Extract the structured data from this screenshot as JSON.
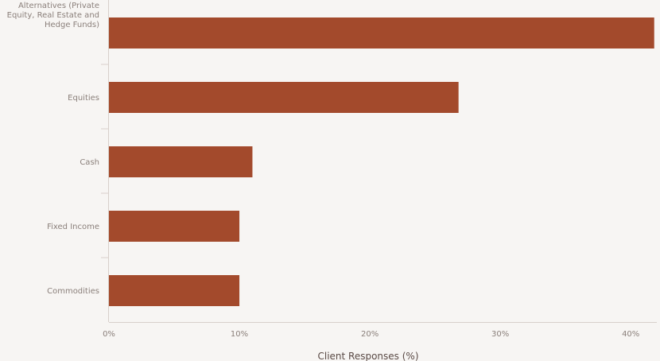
{
  "chart_data": {
    "type": "bar",
    "orientation": "horizontal",
    "categories": [
      [
        "Alternatives (Private",
        "Equity, Real Estate and",
        "Hedge Funds)"
      ],
      [
        "Equities"
      ],
      [
        "Cash"
      ],
      [
        "Fixed Income"
      ],
      [
        "Commodities"
      ]
    ],
    "values": [
      41.8,
      26.8,
      11,
      10,
      10
    ],
    "xlabel": "Client Responses (%)",
    "xlim": [
      0,
      42
    ],
    "xticks": [
      0,
      10,
      20,
      30,
      40
    ],
    "xtick_labels": [
      "0%",
      "10%",
      "20%",
      "30%",
      "40%"
    ],
    "grid": false,
    "bar_color": "#a34a2c",
    "axis_color": "#d8d0cb"
  }
}
